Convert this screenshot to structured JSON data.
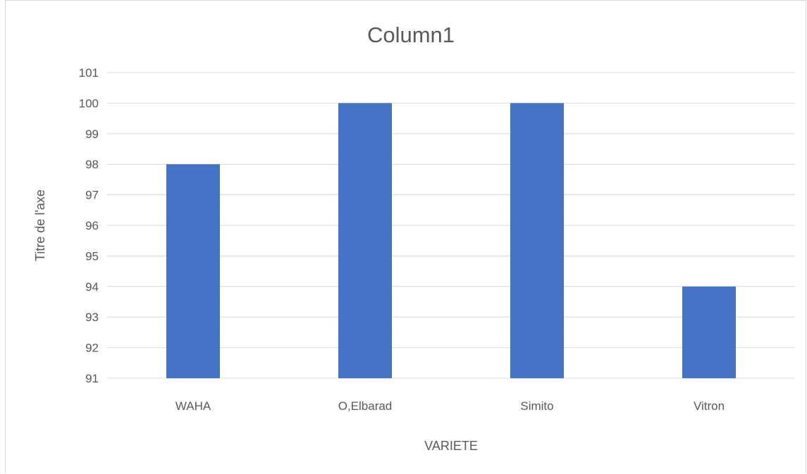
{
  "chart_data": {
    "type": "bar",
    "title": "Column1",
    "xlabel": "VARIETE",
    "ylabel": "Titre de l'axe",
    "categories": [
      "WAHA",
      "O,Elbarad",
      "Simito",
      "Vitron"
    ],
    "series": [
      {
        "values": [
          98,
          100,
          100,
          94
        ]
      }
    ],
    "ylim": [
      91,
      101
    ],
    "yticks": [
      91,
      92,
      93,
      94,
      95,
      96,
      97,
      98,
      99,
      100,
      101
    ],
    "grid": true,
    "legend": "none",
    "bar_color": "#4472c4",
    "grid_color": "#d9d9d9",
    "text_color": "#595959"
  }
}
